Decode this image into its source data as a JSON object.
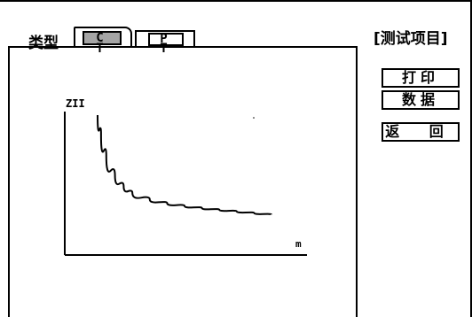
{
  "tabs": {
    "type_label": "类型",
    "ct_label": "C T",
    "pt_label": "P T"
  },
  "header": {
    "title": "[测试项目]"
  },
  "buttons": {
    "print": "打印",
    "data": "数据",
    "back": "返 回"
  },
  "chart_data": {
    "type": "line",
    "ylabel": "ZII",
    "xlabel": "m",
    "series": [
      {
        "x": [
          0.0,
          0.02,
          0.05,
          0.1,
          0.15,
          0.2,
          0.3,
          0.4,
          0.5,
          0.6,
          0.7,
          0.8,
          0.9,
          1.0
        ],
        "y": [
          1.0,
          0.82,
          0.62,
          0.44,
          0.34,
          0.28,
          0.22,
          0.185,
          0.16,
          0.14,
          0.125,
          0.11,
          0.095,
          0.08
        ]
      }
    ]
  }
}
